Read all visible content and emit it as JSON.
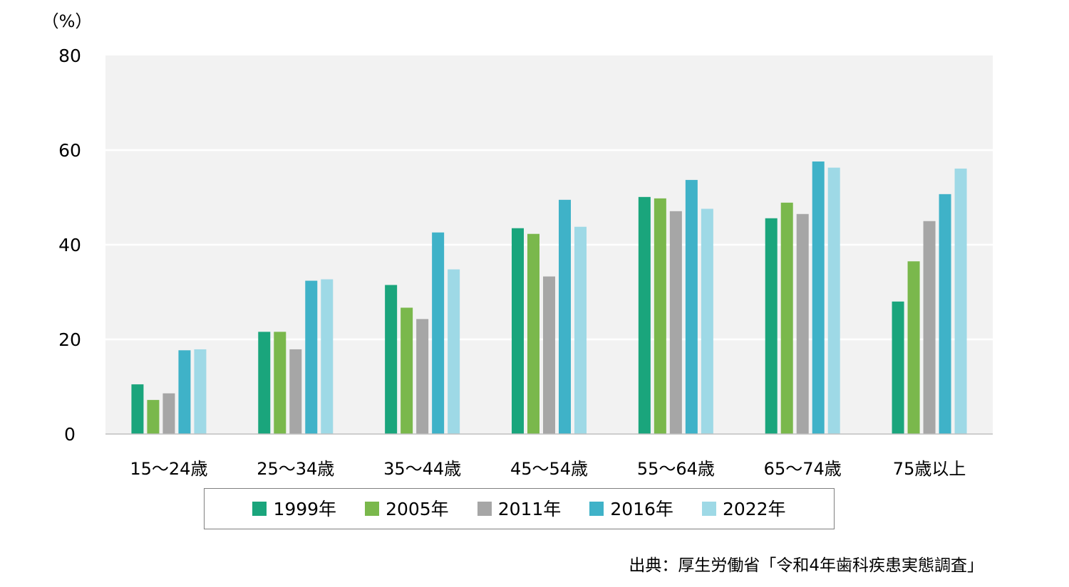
{
  "chart_data": {
    "type": "bar",
    "ylabel": "（%）",
    "ylim": [
      0,
      80
    ],
    "yticks": [
      0,
      20,
      40,
      60,
      80
    ],
    "grid": true,
    "legend_position": "bottom",
    "categories": [
      "15～24歳",
      "25～34歳",
      "35～44歳",
      "45～54歳",
      "55～64歳",
      "65～74歳",
      "75歳以上"
    ],
    "series": [
      {
        "name": "1999年",
        "color": "#1aa57c",
        "values": [
          10.5,
          21.6,
          31.5,
          43.5,
          50.1,
          45.6,
          28.0
        ]
      },
      {
        "name": "2005年",
        "color": "#7ab84c",
        "values": [
          7.2,
          21.6,
          26.7,
          42.3,
          49.8,
          48.9,
          36.5
        ]
      },
      {
        "name": "2011年",
        "color": "#a6a6a6",
        "values": [
          8.6,
          17.9,
          24.3,
          33.3,
          47.1,
          46.5,
          45.0
        ]
      },
      {
        "name": "2016年",
        "color": "#3fb2c8",
        "values": [
          17.7,
          32.4,
          42.6,
          49.5,
          53.7,
          57.6,
          50.7
        ]
      },
      {
        "name": "2022年",
        "color": "#9ed9e6",
        "values": [
          17.9,
          32.7,
          34.8,
          43.8,
          47.6,
          56.3,
          56.1
        ]
      }
    ]
  },
  "source": "出典：厚生労働省「令和4年歯科疾患実態調査」",
  "colors": {
    "plot_background": "#f2f2f2",
    "gridline": "#ffffff",
    "axis_line": "#bfbfbf"
  }
}
